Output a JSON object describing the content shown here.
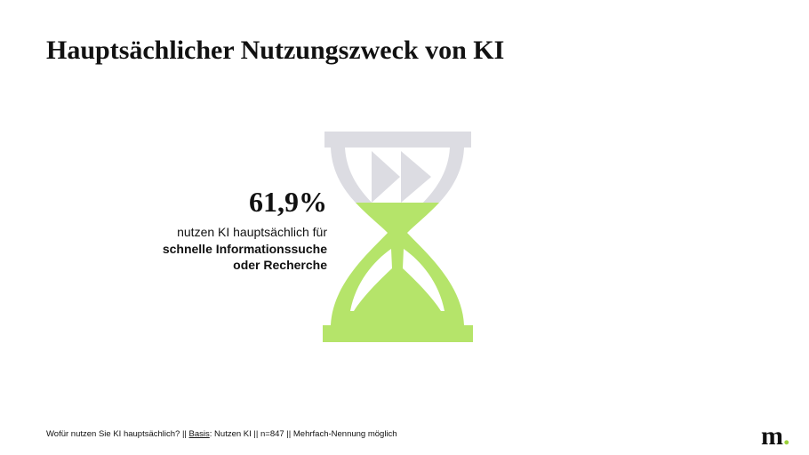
{
  "header": {
    "title": "Hauptsächlicher Nutzungszweck von KI"
  },
  "stat": {
    "value_text": "61,9%",
    "lines": [
      "nutzen KI hauptsächlich für",
      "schnelle Informationssuche",
      "oder Recherche"
    ]
  },
  "footnote": {
    "segments": [
      "Wofür nutzen Sie KI hauptsächlich? || ",
      "Basis",
      ": Nutzen KI || n=847 || Mehrfach-Nennung möglich"
    ]
  },
  "logo": {
    "letter": "m",
    "dot": "."
  }
}
